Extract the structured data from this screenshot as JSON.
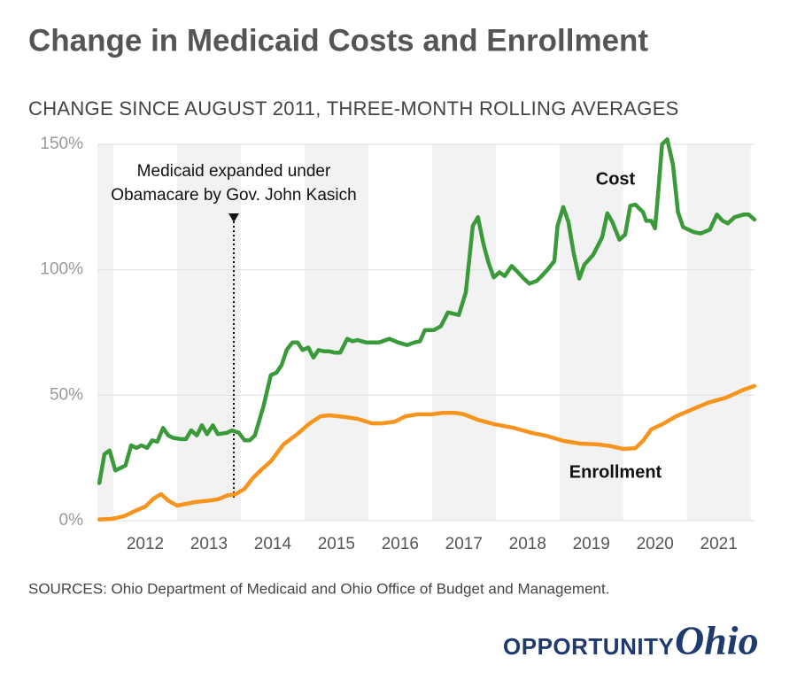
{
  "chart_data": {
    "type": "line",
    "title": "Change in Medicaid Costs and Enrollment",
    "subtitle": "CHANGE SINCE AUGUST 2011, THREE-MONTH ROLLING AVERAGES",
    "source": "SOURCES: Ohio Department of Medicaid and Ohio Office of Budget and Management.",
    "brand": [
      "OPPORTUNITY",
      "Ohio"
    ],
    "xlim": [
      2011.75,
      2022.06
    ],
    "xticks": [
      {
        "value": 2012.5,
        "label": "2012"
      },
      {
        "value": 2013.5,
        "label": "2013"
      },
      {
        "value": 2014.5,
        "label": "2014"
      },
      {
        "value": 2015.5,
        "label": "2015"
      },
      {
        "value": 2016.5,
        "label": "2016"
      },
      {
        "value": 2017.5,
        "label": "2017"
      },
      {
        "value": 2018.5,
        "label": "2018"
      },
      {
        "value": 2019.5,
        "label": "2019"
      },
      {
        "value": 2020.5,
        "label": "2020"
      },
      {
        "value": 2021.5,
        "label": "2021"
      }
    ],
    "ylim": [
      0,
      150
    ],
    "yticks": [
      {
        "value": 0,
        "label": "0%"
      },
      {
        "value": 50,
        "label": "50%"
      },
      {
        "value": 100,
        "label": "100%"
      },
      {
        "value": 150,
        "label": "150%"
      }
    ],
    "grid": true,
    "annotation": {
      "x": 2013.89,
      "text": [
        "Medicaid expanded under",
        "Obamacare by Gov. John Kasich"
      ]
    },
    "series": [
      {
        "name": "Cost",
        "color": "#3a9a3a",
        "x": [
          2011.78,
          2011.86,
          2011.94,
          2012.03,
          2012.19,
          2012.28,
          2012.36,
          2012.44,
          2012.53,
          2012.61,
          2012.69,
          2012.78,
          2012.86,
          2012.94,
          2013.06,
          2013.14,
          2013.22,
          2013.31,
          2013.39,
          2013.47,
          2013.56,
          2013.64,
          2013.78,
          2013.86,
          2013.97,
          2014.06,
          2014.14,
          2014.22,
          2014.36,
          2014.47,
          2014.56,
          2014.64,
          2014.72,
          2014.81,
          2014.89,
          2014.97,
          2015.06,
          2015.14,
          2015.22,
          2015.31,
          2015.39,
          2015.47,
          2015.56,
          2015.67,
          2015.75,
          2015.83,
          2015.97,
          2016.06,
          2016.17,
          2016.33,
          2016.47,
          2016.61,
          2016.72,
          2016.81,
          2016.89,
          2017.03,
          2017.14,
          2017.25,
          2017.42,
          2017.53,
          2017.64,
          2017.72,
          2017.81,
          2017.89,
          2017.97,
          2018.06,
          2018.14,
          2018.25,
          2018.33,
          2018.44,
          2018.53,
          2018.64,
          2018.72,
          2018.81,
          2018.92,
          2018.97,
          2019.06,
          2019.14,
          2019.22,
          2019.31,
          2019.39,
          2019.53,
          2019.67,
          2019.75,
          2019.83,
          2019.94,
          2020.03,
          2020.11,
          2020.19,
          2020.31,
          2020.36,
          2020.44,
          2020.5,
          2020.56,
          2020.61,
          2020.69,
          2020.78,
          2020.86,
          2020.94,
          2021.11,
          2021.22,
          2021.36,
          2021.47,
          2021.56,
          2021.64,
          2021.75,
          2021.89,
          2021.97,
          2022.06
        ],
        "values": [
          15,
          26.5,
          28,
          20,
          22,
          30,
          29,
          30,
          29,
          32,
          31.5,
          37,
          34,
          33,
          32.5,
          32.5,
          36,
          34,
          38,
          34.5,
          38,
          34.5,
          35,
          36,
          35,
          32,
          32,
          34,
          46,
          58,
          59,
          62,
          68,
          71,
          71,
          68,
          69,
          65,
          68,
          67.5,
          67.5,
          67,
          67,
          72.5,
          71.5,
          72,
          71,
          71,
          71,
          72.5,
          71,
          70,
          71,
          71.5,
          76,
          76,
          77.5,
          83,
          82,
          91,
          117.5,
          121,
          110,
          102.5,
          97,
          99,
          97.5,
          101.5,
          99.5,
          96.5,
          94.5,
          95.5,
          97.5,
          100,
          103.5,
          117.5,
          125,
          119,
          107,
          96.5,
          102,
          106,
          113,
          122.5,
          119,
          112,
          114,
          125.5,
          126,
          123,
          119.5,
          119.5,
          116.5,
          134,
          150,
          152,
          142,
          123,
          117,
          115,
          114.5,
          116,
          122,
          119.5,
          118.5,
          121,
          122,
          122,
          120
        ]
      },
      {
        "name": "Enrollment",
        "color": "#f7941d",
        "x": [
          2011.78,
          2011.97,
          2012.17,
          2012.31,
          2012.5,
          2012.64,
          2012.75,
          2012.86,
          2013.0,
          2013.14,
          2013.28,
          2013.5,
          2013.64,
          2013.78,
          2013.92,
          2014.06,
          2014.19,
          2014.33,
          2014.47,
          2014.67,
          2014.89,
          2015.08,
          2015.25,
          2015.39,
          2015.64,
          2015.83,
          2016.06,
          2016.22,
          2016.42,
          2016.58,
          2016.78,
          2017.0,
          2017.17,
          2017.36,
          2017.5,
          2017.72,
          2017.97,
          2018.28,
          2018.56,
          2018.78,
          2019.06,
          2019.33,
          2019.61,
          2019.81,
          2020.0,
          2020.19,
          2020.31,
          2020.44,
          2020.64,
          2020.83,
          2021.06,
          2021.33,
          2021.61,
          2021.89,
          2022.06
        ],
        "values": [
          0.5,
          0.7,
          1.8,
          3.5,
          5.6,
          9,
          10.6,
          8,
          6,
          6.7,
          7.4,
          8,
          8.5,
          10,
          10.6,
          12.7,
          17,
          20.5,
          23.6,
          30.4,
          34.6,
          38.8,
          41.6,
          42,
          41.3,
          40.6,
          38.8,
          38.8,
          39.5,
          41.6,
          42.4,
          42.4,
          43,
          43,
          42.4,
          40.2,
          38.5,
          37,
          35,
          33.9,
          31.8,
          30.7,
          30.4,
          29.7,
          28.6,
          28.9,
          31.8,
          36.4,
          38.8,
          41.6,
          44.1,
          47,
          49,
          52.2,
          53.7
        ]
      }
    ]
  }
}
